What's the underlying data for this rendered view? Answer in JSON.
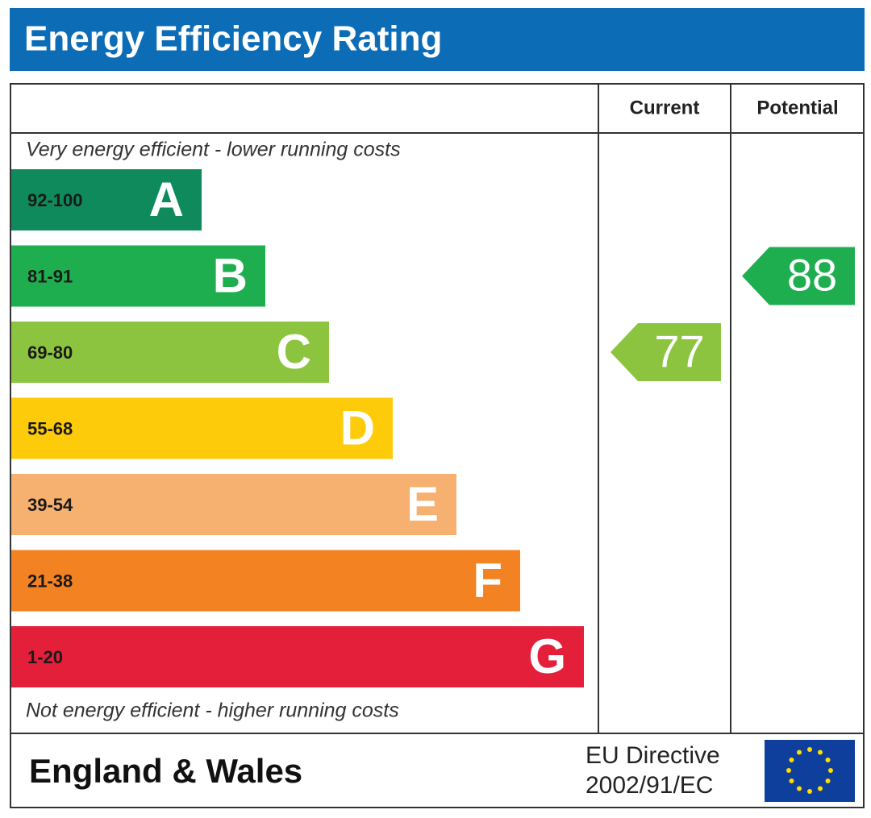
{
  "header": {
    "title": "Energy Efficiency Rating"
  },
  "columns": {
    "current": "Current",
    "potential": "Potential"
  },
  "top_note": "Very energy efficient - lower running costs",
  "bands": [
    {
      "range": "92-100",
      "letter": "A",
      "color": "#0e8a5c"
    },
    {
      "range": "81-91",
      "letter": "B",
      "color": "#1fae4f"
    },
    {
      "range": "69-80",
      "letter": "C",
      "color": "#8cc43f"
    },
    {
      "range": "55-68",
      "letter": "D",
      "color": "#fecb0a"
    },
    {
      "range": "39-54",
      "letter": "E",
      "color": "#f6b06f"
    },
    {
      "range": "21-38",
      "letter": "F",
      "color": "#f38223"
    },
    {
      "range": "1-20",
      "letter": "G",
      "color": "#e41f3a"
    }
  ],
  "bottom_note": "Not energy efficient - higher running costs",
  "current": {
    "value": 77
  },
  "potential": {
    "value": 88
  },
  "footer": {
    "region": "England & Wales",
    "directive": [
      "EU Directive",
      "2002/91/EC"
    ]
  }
}
